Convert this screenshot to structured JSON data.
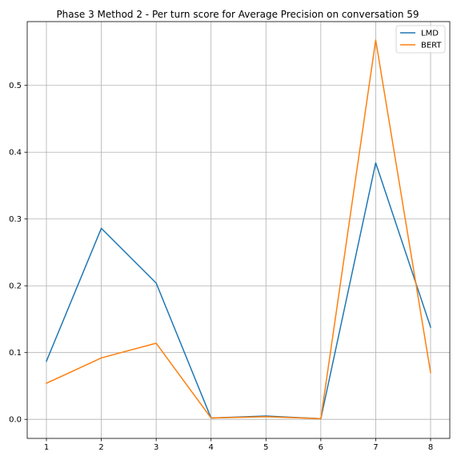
{
  "chart_data": {
    "type": "line",
    "title": "Phase 3 Method 2 - Per turn score for Average Precision on conversation 59",
    "xlabel": "",
    "ylabel": "",
    "x": [
      1,
      2,
      3,
      4,
      5,
      6,
      7,
      8
    ],
    "xlim": [
      0.65,
      8.35
    ],
    "ylim": [
      -0.0285,
      0.5955
    ],
    "x_ticks": [
      1,
      2,
      3,
      4,
      5,
      6,
      7,
      8
    ],
    "x_tick_labels": [
      "1",
      "2",
      "3",
      "4",
      "5",
      "6",
      "7",
      "8"
    ],
    "y_ticks": [
      0.0,
      0.1,
      0.2,
      0.3,
      0.4,
      0.5
    ],
    "y_tick_labels": [
      "0.0",
      "0.1",
      "0.2",
      "0.3",
      "0.4",
      "0.5"
    ],
    "grid": true,
    "legend_position": "top-right",
    "series": [
      {
        "name": "LMD",
        "color": "#1f77b4",
        "values": [
          0.087,
          0.286,
          0.204,
          0.002,
          0.005,
          0.001,
          0.384,
          0.138
        ]
      },
      {
        "name": "BERT",
        "color": "#ff7f0e",
        "values": [
          0.054,
          0.092,
          0.114,
          0.002,
          0.004,
          0.001,
          0.568,
          0.07
        ]
      }
    ]
  }
}
